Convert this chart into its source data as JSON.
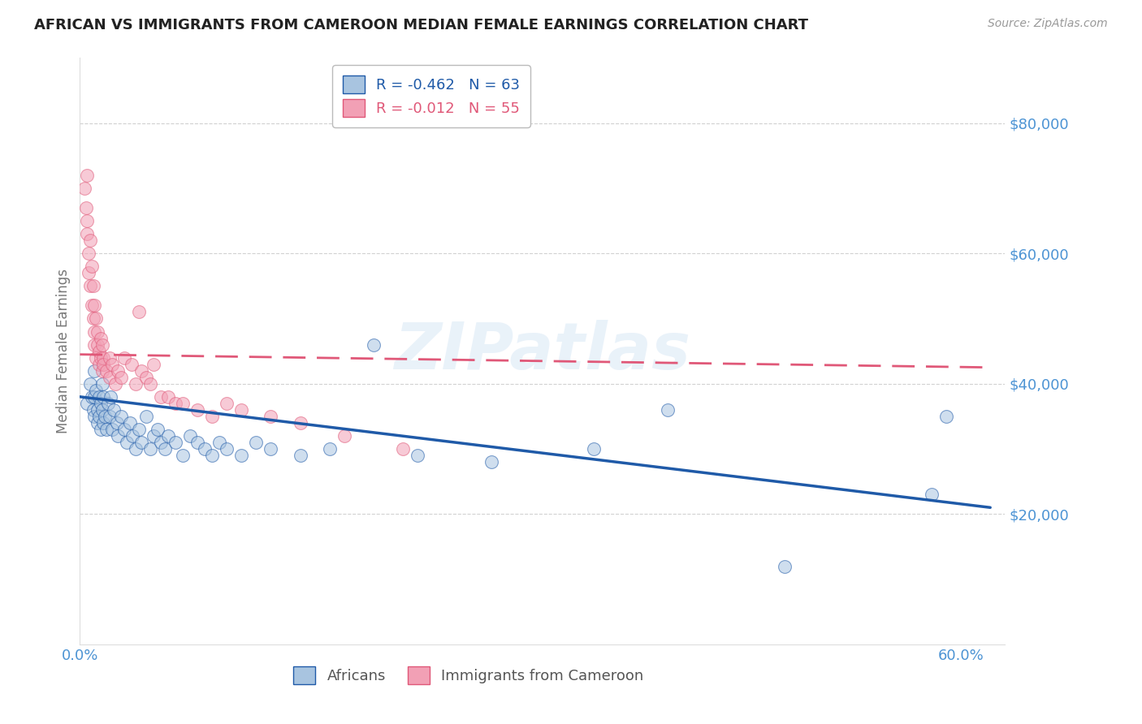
{
  "title": "AFRICAN VS IMMIGRANTS FROM CAMEROON MEDIAN FEMALE EARNINGS CORRELATION CHART",
  "source": "Source: ZipAtlas.com",
  "ylabel": "Median Female Earnings",
  "legend_labels": [
    "Africans",
    "Immigrants from Cameroon"
  ],
  "r_values": [
    -0.462,
    -0.012
  ],
  "n_values": [
    63,
    55
  ],
  "ylim": [
    0,
    90000
  ],
  "xlim": [
    0.0,
    0.63
  ],
  "yticks": [
    20000,
    40000,
    60000,
    80000
  ],
  "ytick_labels": [
    "$20,000",
    "$40,000",
    "$60,000",
    "$80,000"
  ],
  "xticks": [
    0.0,
    0.1,
    0.2,
    0.3,
    0.4,
    0.5,
    0.6
  ],
  "xtick_labels": [
    "0.0%",
    "",
    "",
    "",
    "",
    "",
    "60.0%"
  ],
  "color_blue": "#a8c4e0",
  "color_pink": "#f2a0b5",
  "color_blue_line": "#1f5aa8",
  "color_pink_line": "#e05878",
  "color_axis_labels": "#4d94d4",
  "background_color": "#ffffff",
  "watermark": "ZIPatlas",
  "blue_line_x": [
    0.0,
    0.62
  ],
  "blue_line_y": [
    38000,
    21000
  ],
  "pink_line_x": [
    0.0,
    0.62
  ],
  "pink_line_y": [
    44500,
    42500
  ],
  "africans_x": [
    0.005,
    0.007,
    0.008,
    0.009,
    0.01,
    0.01,
    0.01,
    0.011,
    0.012,
    0.012,
    0.013,
    0.013,
    0.014,
    0.014,
    0.015,
    0.015,
    0.016,
    0.016,
    0.017,
    0.018,
    0.019,
    0.02,
    0.021,
    0.022,
    0.023,
    0.025,
    0.026,
    0.028,
    0.03,
    0.032,
    0.034,
    0.036,
    0.038,
    0.04,
    0.042,
    0.045,
    0.048,
    0.05,
    0.053,
    0.055,
    0.058,
    0.06,
    0.065,
    0.07,
    0.075,
    0.08,
    0.085,
    0.09,
    0.095,
    0.1,
    0.11,
    0.12,
    0.13,
    0.15,
    0.17,
    0.2,
    0.23,
    0.28,
    0.35,
    0.4,
    0.48,
    0.58,
    0.59
  ],
  "africans_y": [
    37000,
    40000,
    38000,
    36000,
    42000,
    38000,
    35000,
    39000,
    36000,
    34000,
    38000,
    35000,
    33000,
    37000,
    40000,
    36000,
    34000,
    38000,
    35000,
    33000,
    37000,
    35000,
    38000,
    33000,
    36000,
    34000,
    32000,
    35000,
    33000,
    31000,
    34000,
    32000,
    30000,
    33000,
    31000,
    35000,
    30000,
    32000,
    33000,
    31000,
    30000,
    32000,
    31000,
    29000,
    32000,
    31000,
    30000,
    29000,
    31000,
    30000,
    29000,
    31000,
    30000,
    29000,
    30000,
    46000,
    29000,
    28000,
    30000,
    36000,
    12000,
    23000,
    35000
  ],
  "cameroon_x": [
    0.003,
    0.004,
    0.005,
    0.005,
    0.005,
    0.006,
    0.006,
    0.007,
    0.007,
    0.008,
    0.008,
    0.009,
    0.009,
    0.01,
    0.01,
    0.01,
    0.011,
    0.011,
    0.012,
    0.012,
    0.013,
    0.013,
    0.014,
    0.014,
    0.015,
    0.015,
    0.016,
    0.016,
    0.018,
    0.02,
    0.02,
    0.022,
    0.024,
    0.026,
    0.028,
    0.03,
    0.035,
    0.038,
    0.04,
    0.042,
    0.045,
    0.048,
    0.05,
    0.055,
    0.06,
    0.065,
    0.07,
    0.08,
    0.09,
    0.1,
    0.11,
    0.13,
    0.15,
    0.18,
    0.22
  ],
  "cameroon_y": [
    70000,
    67000,
    65000,
    72000,
    63000,
    60000,
    57000,
    55000,
    62000,
    52000,
    58000,
    50000,
    55000,
    48000,
    52000,
    46000,
    50000,
    44000,
    48000,
    46000,
    45000,
    43000,
    47000,
    44000,
    46000,
    42000,
    44000,
    43000,
    42000,
    44000,
    41000,
    43000,
    40000,
    42000,
    41000,
    44000,
    43000,
    40000,
    51000,
    42000,
    41000,
    40000,
    43000,
    38000,
    38000,
    37000,
    37000,
    36000,
    35000,
    37000,
    36000,
    35000,
    34000,
    32000,
    30000
  ]
}
